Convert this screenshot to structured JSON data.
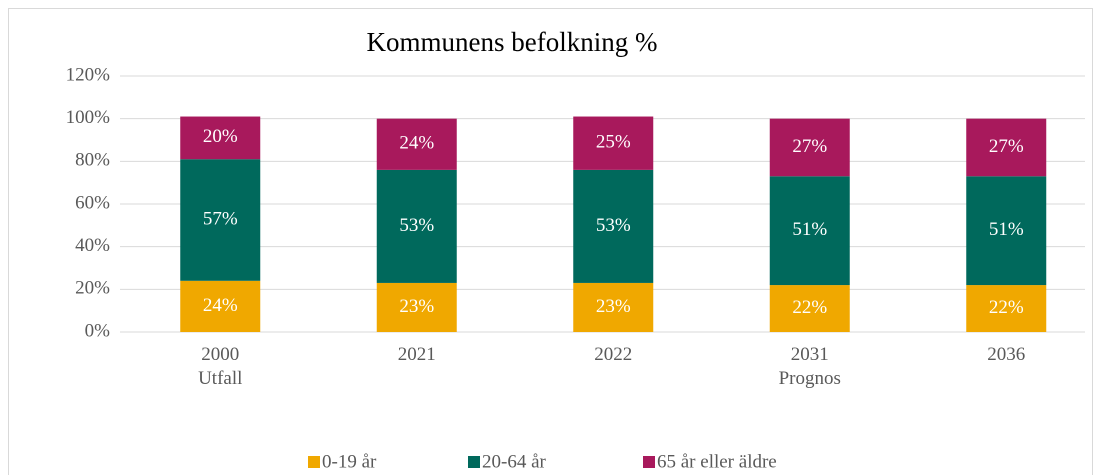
{
  "chart_data": {
    "type": "stacked_bar",
    "title": "Kommunens befolkning %",
    "categories": [
      "2000\nUtfall",
      "2021",
      "2022",
      "2031\nPrognos",
      "2036"
    ],
    "series": [
      {
        "name": "0-19 år",
        "color": "#f0a800",
        "values": [
          24,
          23,
          23,
          22,
          22
        ],
        "value_labels": [
          "24%",
          "23%",
          "23%",
          "22%",
          "22%"
        ]
      },
      {
        "name": "20-64 år",
        "color": "#00695c",
        "values": [
          57,
          53,
          53,
          51,
          51
        ],
        "value_labels": [
          "57%",
          "53%",
          "53%",
          "51%",
          "51%"
        ]
      },
      {
        "name": "65 år eller äldre",
        "color": "#a8195c",
        "values": [
          20,
          24,
          25,
          27,
          27
        ],
        "value_labels": [
          "20%",
          "24%",
          "25%",
          "27%",
          "27%"
        ]
      }
    ],
    "ylim": [
      0,
      120
    ],
    "yticks": [
      {
        "value": 0,
        "label": "0%"
      },
      {
        "value": 20,
        "label": "20%"
      },
      {
        "value": 40,
        "label": "40%"
      },
      {
        "value": 60,
        "label": "60%"
      },
      {
        "value": 80,
        "label": "80%"
      },
      {
        "value": 100,
        "label": "100%"
      },
      {
        "value": 120,
        "label": "120%"
      }
    ],
    "grid": true,
    "legend": "bottom"
  }
}
